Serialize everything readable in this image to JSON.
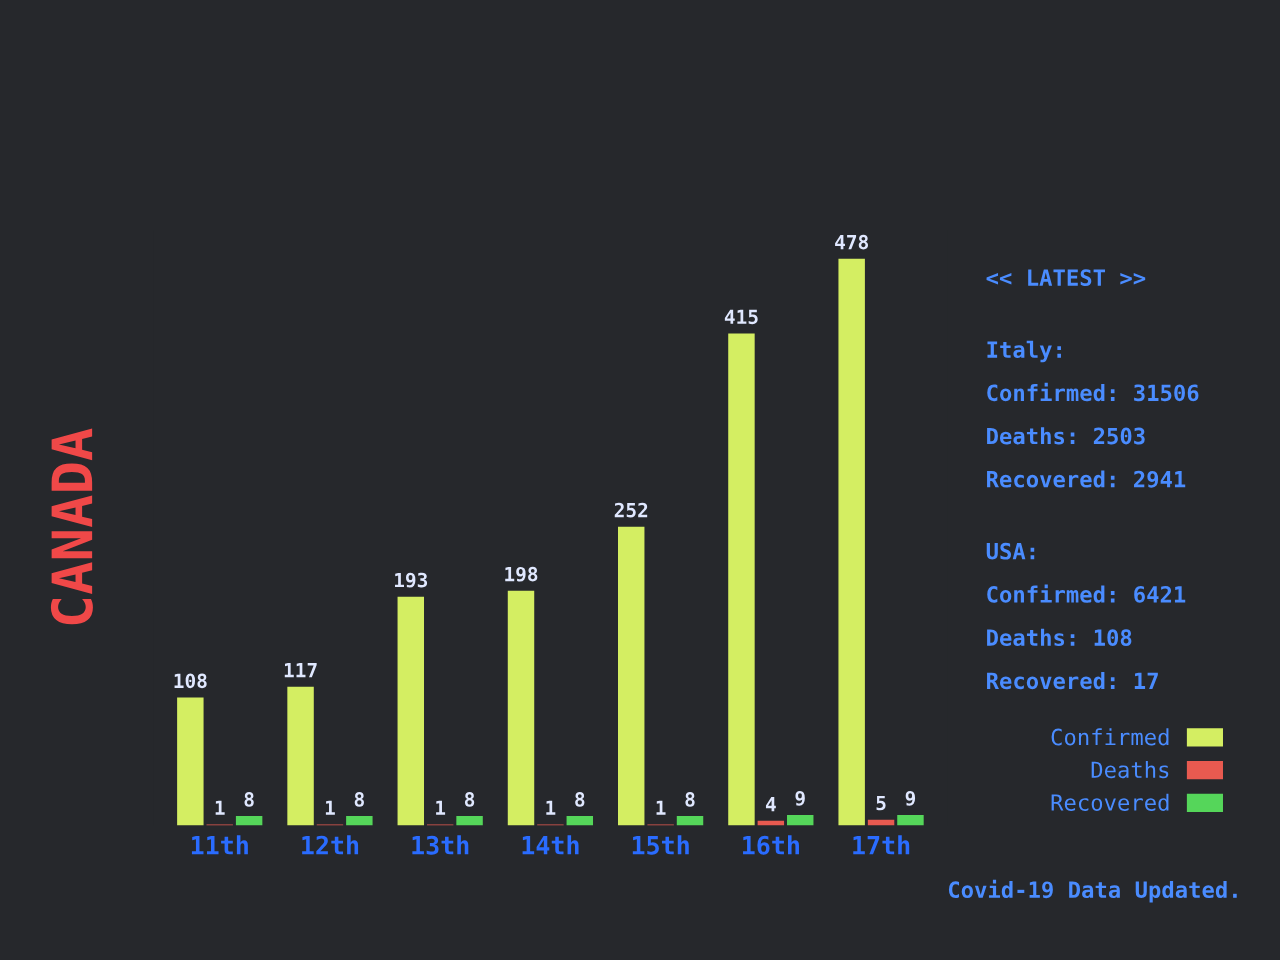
{
  "chart_data": {
    "type": "bar",
    "title": "CANADA",
    "categories": [
      "11th",
      "12th",
      "13th",
      "14th",
      "15th",
      "16th",
      "17th"
    ],
    "series": [
      {
        "name": "Confirmed",
        "color": "#d4ee62",
        "values": [
          108,
          117,
          193,
          198,
          252,
          415,
          478
        ]
      },
      {
        "name": "Deaths",
        "color": "#e85a50",
        "values": [
          1,
          1,
          1,
          1,
          1,
          4,
          5
        ]
      },
      {
        "name": "Recovered",
        "color": "#55d65a",
        "values": [
          8,
          8,
          8,
          8,
          8,
          9,
          9
        ]
      }
    ],
    "data_labels": true,
    "legend": "bottom right",
    "grid": false,
    "annotations": [
      "<< LATEST >>",
      "Italy:",
      "Confirmed: 31506",
      "Deaths: 2503",
      "Recovered: 2941",
      "USA:",
      "Confirmed: 6421",
      "Deaths: 108",
      "Recovered: 17",
      "Covid-19 Data Updated."
    ]
  }
}
